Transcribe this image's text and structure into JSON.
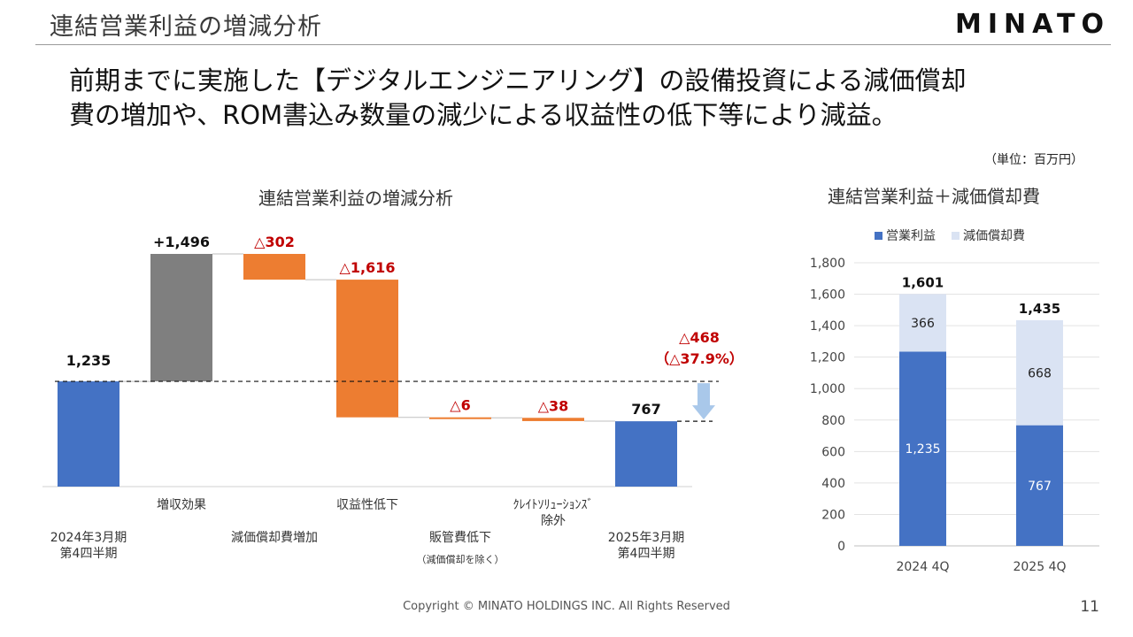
{
  "slide": {
    "title": "連結営業利益の増減分析",
    "logo": "MINATO",
    "headline_line1": "前期までに実施した【デジタルエンジニアリング】の設備投資による減価償却",
    "headline_line2": "費の増加や、ROM書込み数量の減少による収益性の低下等により減益。",
    "unit_note": "（単位：百万円）",
    "footer": "Copyright © MINATO HOLDINGS INC. All Rights Reserved",
    "page_number": "11"
  },
  "colors": {
    "blue": "#4472c4",
    "gray": "#7f7f7f",
    "orange": "#ed7d31",
    "light_blue": "#dae3f3",
    "arrow": "#a9c8ea",
    "negative_label": "#c00000"
  },
  "chart_data": [
    {
      "type": "bar",
      "subtype": "waterfall",
      "title": "連結営業利益の増減分析",
      "steps": [
        {
          "label_lines": [
            "2024年3月期",
            "第4四半期"
          ],
          "kind": "total",
          "value": 1235,
          "value_label": "1,235"
        },
        {
          "label_lines": [
            "増収効果"
          ],
          "kind": "increase",
          "value": 1496,
          "value_label": "+1,496"
        },
        {
          "label_lines": [
            "減価償却費増加"
          ],
          "kind": "decrease",
          "value": -302,
          "value_label": "△302"
        },
        {
          "label_lines": [
            "収益性低下"
          ],
          "kind": "decrease",
          "value": -1616,
          "value_label": "△1,616"
        },
        {
          "label_lines": [
            "販管費低下"
          ],
          "sub_label": "（減価償却を除く）",
          "kind": "decrease",
          "value": -6,
          "value_label": "△6"
        },
        {
          "label_lines": [
            "ｸﾚｲﾄｿﾘｭｰｼｮﾝｽﾞ",
            "除外"
          ],
          "kind": "decrease",
          "value": -38,
          "value_label": "△38"
        },
        {
          "label_lines": [
            "2025年3月期",
            "第4四半期"
          ],
          "kind": "total",
          "value": 767,
          "value_label": "767"
        }
      ],
      "change_annotation": {
        "value": -468,
        "line1": "△468",
        "line2": "（△37.9%）"
      }
    },
    {
      "type": "bar",
      "subtype": "stacked",
      "title": "連結営業利益＋減価償却費",
      "categories": [
        "2024 4Q",
        "2025 4Q"
      ],
      "series": [
        {
          "name": "営業利益",
          "values": [
            1235,
            767
          ],
          "labels": [
            "1,235",
            "767"
          ]
        },
        {
          "name": "減価償却費",
          "values": [
            366,
            668
          ],
          "labels": [
            "366",
            "668"
          ]
        }
      ],
      "totals": [
        1601,
        1435
      ],
      "total_labels": [
        "1,601",
        "1,435"
      ],
      "ylim": [
        0,
        1800
      ],
      "yticks": [
        0,
        200,
        400,
        600,
        800,
        1000,
        1200,
        1400,
        1600,
        1800
      ],
      "ytick_labels": [
        "0",
        "200",
        "400",
        "600",
        "800",
        "1,000",
        "1,200",
        "1,400",
        "1,600",
        "1,800"
      ],
      "grid": true,
      "legend": "top"
    }
  ]
}
